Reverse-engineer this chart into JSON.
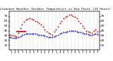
{
  "title": "Milwaukee Weather Outdoor Temperature vs Dew Point (24 Hours)",
  "title_fontsize": 3.2,
  "background_color": "#ffffff",
  "xlim": [
    0,
    48
  ],
  "ylim": [
    0,
    80
  ],
  "yticks": [
    10,
    20,
    30,
    40,
    50,
    60,
    70
  ],
  "ytick_labels": [
    "10",
    "20",
    "30",
    "40",
    "50",
    "60",
    "70"
  ],
  "ytick_fontsize": 3.0,
  "xtick_fontsize": 2.8,
  "grid_color": "#999999",
  "temp_color": "#cc0000",
  "dew_color": "#0000cc",
  "marker_size": 0.9,
  "x_hours": [
    0,
    1,
    2,
    3,
    4,
    5,
    6,
    7,
    8,
    9,
    10,
    11,
    12,
    13,
    14,
    15,
    16,
    17,
    18,
    19,
    20,
    21,
    22,
    23,
    24,
    25,
    26,
    27,
    28,
    29,
    30,
    31,
    32,
    33,
    34,
    35,
    36,
    37,
    38,
    39,
    40,
    41,
    42,
    43,
    44,
    45,
    46,
    47
  ],
  "temp": [
    32,
    31,
    30,
    29,
    28,
    35,
    45,
    52,
    58,
    62,
    64,
    65,
    64,
    62,
    60,
    58,
    55,
    52,
    48,
    42,
    38,
    35,
    33,
    31,
    38,
    42,
    48,
    55,
    60,
    65,
    68,
    70,
    72,
    72,
    70,
    68,
    65,
    60,
    55,
    50,
    45,
    40,
    38,
    36,
    35,
    40,
    42,
    38
  ],
  "dew": [
    26,
    26,
    25,
    25,
    25,
    26,
    28,
    30,
    32,
    33,
    34,
    34,
    34,
    33,
    33,
    32,
    31,
    30,
    30,
    29,
    28,
    27,
    27,
    26,
    28,
    29,
    31,
    33,
    35,
    36,
    37,
    38,
    39,
    40,
    40,
    39,
    38,
    37,
    36,
    35,
    34,
    33,
    32,
    31,
    31,
    32,
    33,
    32
  ],
  "bar_x_start": 4,
  "bar_x_end": 9,
  "bar_y": 38,
  "bar_color": "#cc0000",
  "bar_linewidth": 1.2,
  "xtick_positions": [
    1,
    3,
    5,
    7,
    9,
    11,
    13,
    15,
    17,
    19,
    21,
    23,
    25,
    27,
    29,
    31,
    33,
    35,
    37,
    39,
    41,
    43,
    45,
    47
  ],
  "xtick_labels": [
    "1",
    "3",
    "5",
    "7",
    "1",
    "3",
    "5",
    "7",
    "1",
    "3",
    "5",
    "7",
    "1",
    "3",
    "5",
    "7",
    "1",
    "3",
    "5",
    "7",
    "1",
    "3",
    "5",
    "7"
  ],
  "vline_positions": [
    1,
    3,
    5,
    7,
    9,
    11,
    13,
    15,
    17,
    19,
    21,
    23,
    25,
    27,
    29,
    31,
    33,
    35,
    37,
    39,
    41,
    43,
    45,
    47
  ],
  "right_yticks": [
    10,
    20,
    30,
    40,
    50,
    60,
    70
  ],
  "right_ytick_labels": [
    "10",
    "20",
    "30",
    "40",
    "50",
    "60",
    "70"
  ]
}
